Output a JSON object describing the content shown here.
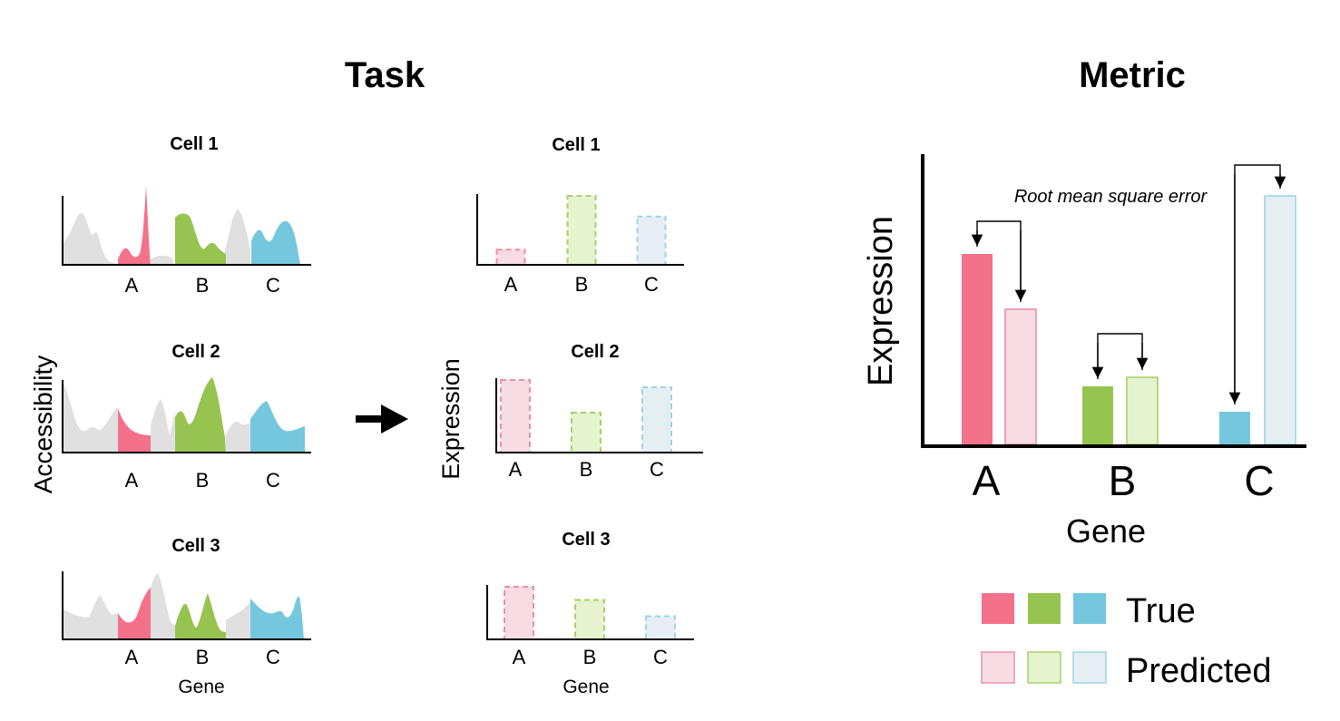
{
  "sections": {
    "task_title": "Task",
    "metric_title": "Metric"
  },
  "task": {
    "accessibility_ylabel": "Accessibility",
    "accessibility_xlabel": "Gene",
    "expression_ylabel": "Expression",
    "expression_xlabel": "Gene",
    "genes": [
      "A",
      "B",
      "C"
    ],
    "cells": [
      {
        "name": "Cell 1",
        "expression": [
          0.22,
          1.0,
          0.7
        ]
      },
      {
        "name": "Cell 2",
        "expression": [
          1.0,
          0.55,
          0.9
        ]
      },
      {
        "name": "Cell 3",
        "expression": [
          1.0,
          0.75,
          0.44
        ]
      }
    ]
  },
  "metric": {
    "ylabel": "Expression",
    "xlabel": "Gene",
    "annotation": "Root mean square error",
    "genes": [
      "A",
      "B",
      "C"
    ],
    "true_values": [
      210,
      64,
      36
    ],
    "predicted_values": [
      149,
      74,
      274
    ],
    "ymax": 320
  },
  "legend": {
    "true_label": "True",
    "predicted_label": "Predicted"
  },
  "colors": {
    "gene_a_true": "#f4718a",
    "gene_b_true": "#97c350",
    "gene_c_true": "#74c7dd",
    "gene_a_pred_fill": "#f7dde3",
    "gene_b_pred_fill": "#e5f3cf",
    "gene_c_pred_fill": "#e5eff3",
    "gene_a_pred_stroke": "#ee8fa3",
    "gene_b_pred_stroke": "#a8d168",
    "gene_c_pred_stroke": "#9fd4e4",
    "background_signal": "#e0e0e0"
  }
}
